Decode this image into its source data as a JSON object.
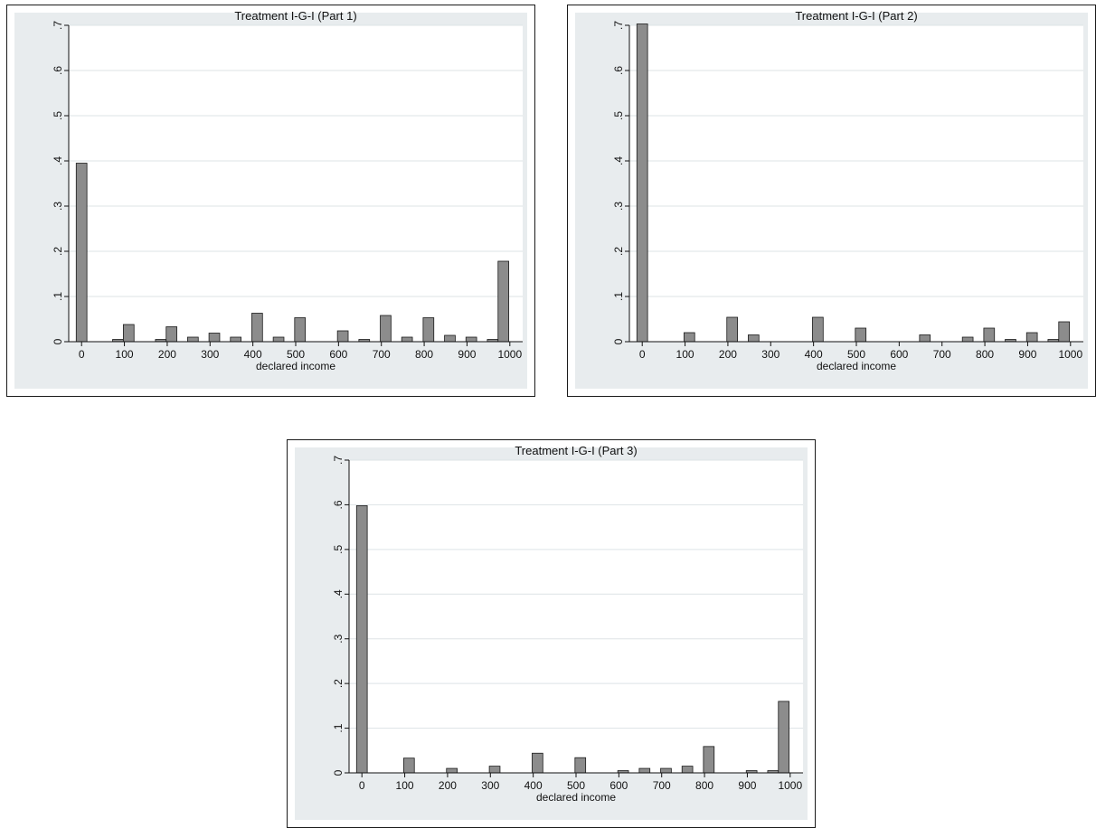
{
  "chart_data": [
    {
      "type": "bar",
      "title": "Treatment I-G-I (Part 1)",
      "xlabel": "declared income",
      "ylabel": "",
      "xlim": [
        -30,
        1030
      ],
      "ylim": [
        0,
        0.7
      ],
      "bin_width": 25,
      "xticks": [
        0,
        100,
        200,
        300,
        400,
        500,
        600,
        700,
        800,
        900,
        1000
      ],
      "yticks": [
        0,
        0.1,
        0.2,
        0.3,
        0.4,
        0.5,
        0.6,
        0.7
      ],
      "ytick_labels": [
        "0",
        ".1",
        ".2",
        ".3",
        ".4",
        ".5",
        ".6",
        ".7"
      ],
      "grid": true,
      "bars": [
        {
          "x": 0,
          "y": 0.395
        },
        {
          "x": 85,
          "y": 0.005
        },
        {
          "x": 110,
          "y": 0.038
        },
        {
          "x": 185,
          "y": 0.005
        },
        {
          "x": 210,
          "y": 0.033
        },
        {
          "x": 260,
          "y": 0.01
        },
        {
          "x": 310,
          "y": 0.019
        },
        {
          "x": 360,
          "y": 0.01
        },
        {
          "x": 410,
          "y": 0.063
        },
        {
          "x": 460,
          "y": 0.01
        },
        {
          "x": 510,
          "y": 0.053
        },
        {
          "x": 610,
          "y": 0.024
        },
        {
          "x": 660,
          "y": 0.005
        },
        {
          "x": 710,
          "y": 0.058
        },
        {
          "x": 760,
          "y": 0.01
        },
        {
          "x": 810,
          "y": 0.053
        },
        {
          "x": 860,
          "y": 0.014
        },
        {
          "x": 910,
          "y": 0.01
        },
        {
          "x": 960,
          "y": 0.005
        },
        {
          "x": 985,
          "y": 0.178
        }
      ]
    },
    {
      "type": "bar",
      "title": "Treatment I-G-I (Part 2)",
      "xlabel": "declared income",
      "ylabel": "",
      "xlim": [
        -30,
        1030
      ],
      "ylim": [
        0,
        0.7
      ],
      "bin_width": 25,
      "xticks": [
        0,
        100,
        200,
        300,
        400,
        500,
        600,
        700,
        800,
        900,
        1000
      ],
      "yticks": [
        0,
        0.1,
        0.2,
        0.3,
        0.4,
        0.5,
        0.6,
        0.7
      ],
      "ytick_labels": [
        "0",
        ".1",
        ".2",
        ".3",
        ".4",
        ".5",
        ".6",
        ".7"
      ],
      "grid": true,
      "bars": [
        {
          "x": 0,
          "y": 0.703
        },
        {
          "x": 110,
          "y": 0.02
        },
        {
          "x": 210,
          "y": 0.054
        },
        {
          "x": 260,
          "y": 0.015
        },
        {
          "x": 410,
          "y": 0.054
        },
        {
          "x": 510,
          "y": 0.03
        },
        {
          "x": 660,
          "y": 0.015
        },
        {
          "x": 760,
          "y": 0.01
        },
        {
          "x": 810,
          "y": 0.03
        },
        {
          "x": 860,
          "y": 0.005
        },
        {
          "x": 910,
          "y": 0.02
        },
        {
          "x": 960,
          "y": 0.005
        },
        {
          "x": 985,
          "y": 0.044
        }
      ]
    },
    {
      "type": "bar",
      "title": "Treatment I-G-I (Part 3)",
      "xlabel": "declared income",
      "ylabel": "",
      "xlim": [
        -30,
        1030
      ],
      "ylim": [
        0,
        0.7
      ],
      "bin_width": 25,
      "xticks": [
        0,
        100,
        200,
        300,
        400,
        500,
        600,
        700,
        800,
        900,
        1000
      ],
      "yticks": [
        0,
        0.1,
        0.2,
        0.3,
        0.4,
        0.5,
        0.6,
        0.7
      ],
      "ytick_labels": [
        "0",
        ".1",
        ".2",
        ".3",
        ".4",
        ".5",
        ".6",
        ".7"
      ],
      "grid": true,
      "bars": [
        {
          "x": 0,
          "y": 0.598
        },
        {
          "x": 110,
          "y": 0.033
        },
        {
          "x": 210,
          "y": 0.01
        },
        {
          "x": 310,
          "y": 0.015
        },
        {
          "x": 410,
          "y": 0.044
        },
        {
          "x": 510,
          "y": 0.034
        },
        {
          "x": 610,
          "y": 0.005
        },
        {
          "x": 660,
          "y": 0.01
        },
        {
          "x": 710,
          "y": 0.01
        },
        {
          "x": 760,
          "y": 0.015
        },
        {
          "x": 810,
          "y": 0.059
        },
        {
          "x": 910,
          "y": 0.005
        },
        {
          "x": 960,
          "y": 0.005
        },
        {
          "x": 985,
          "y": 0.16
        }
      ]
    }
  ],
  "colors": {
    "bar_fill": "#8c8c8c",
    "bar_stroke": "#1a1a1a",
    "plot_background": "#ffffff",
    "outer_background": "#e8ecee",
    "gridline": "#dde3e6"
  }
}
